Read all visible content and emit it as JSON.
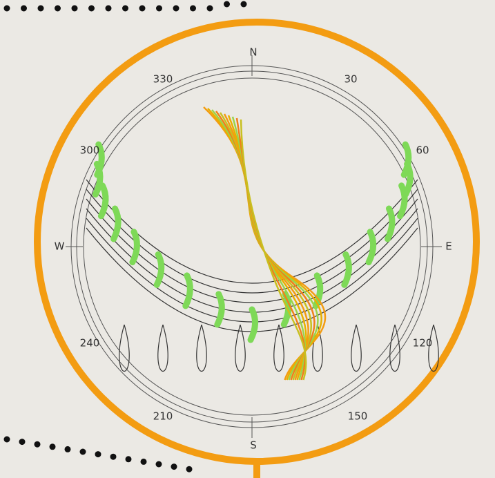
{
  "compass": {
    "north": "N",
    "south": "S",
    "east": "E",
    "west": "W"
  },
  "bearings": [
    "330",
    "30",
    "300",
    "60",
    "240",
    "120",
    "210",
    "150"
  ]
}
